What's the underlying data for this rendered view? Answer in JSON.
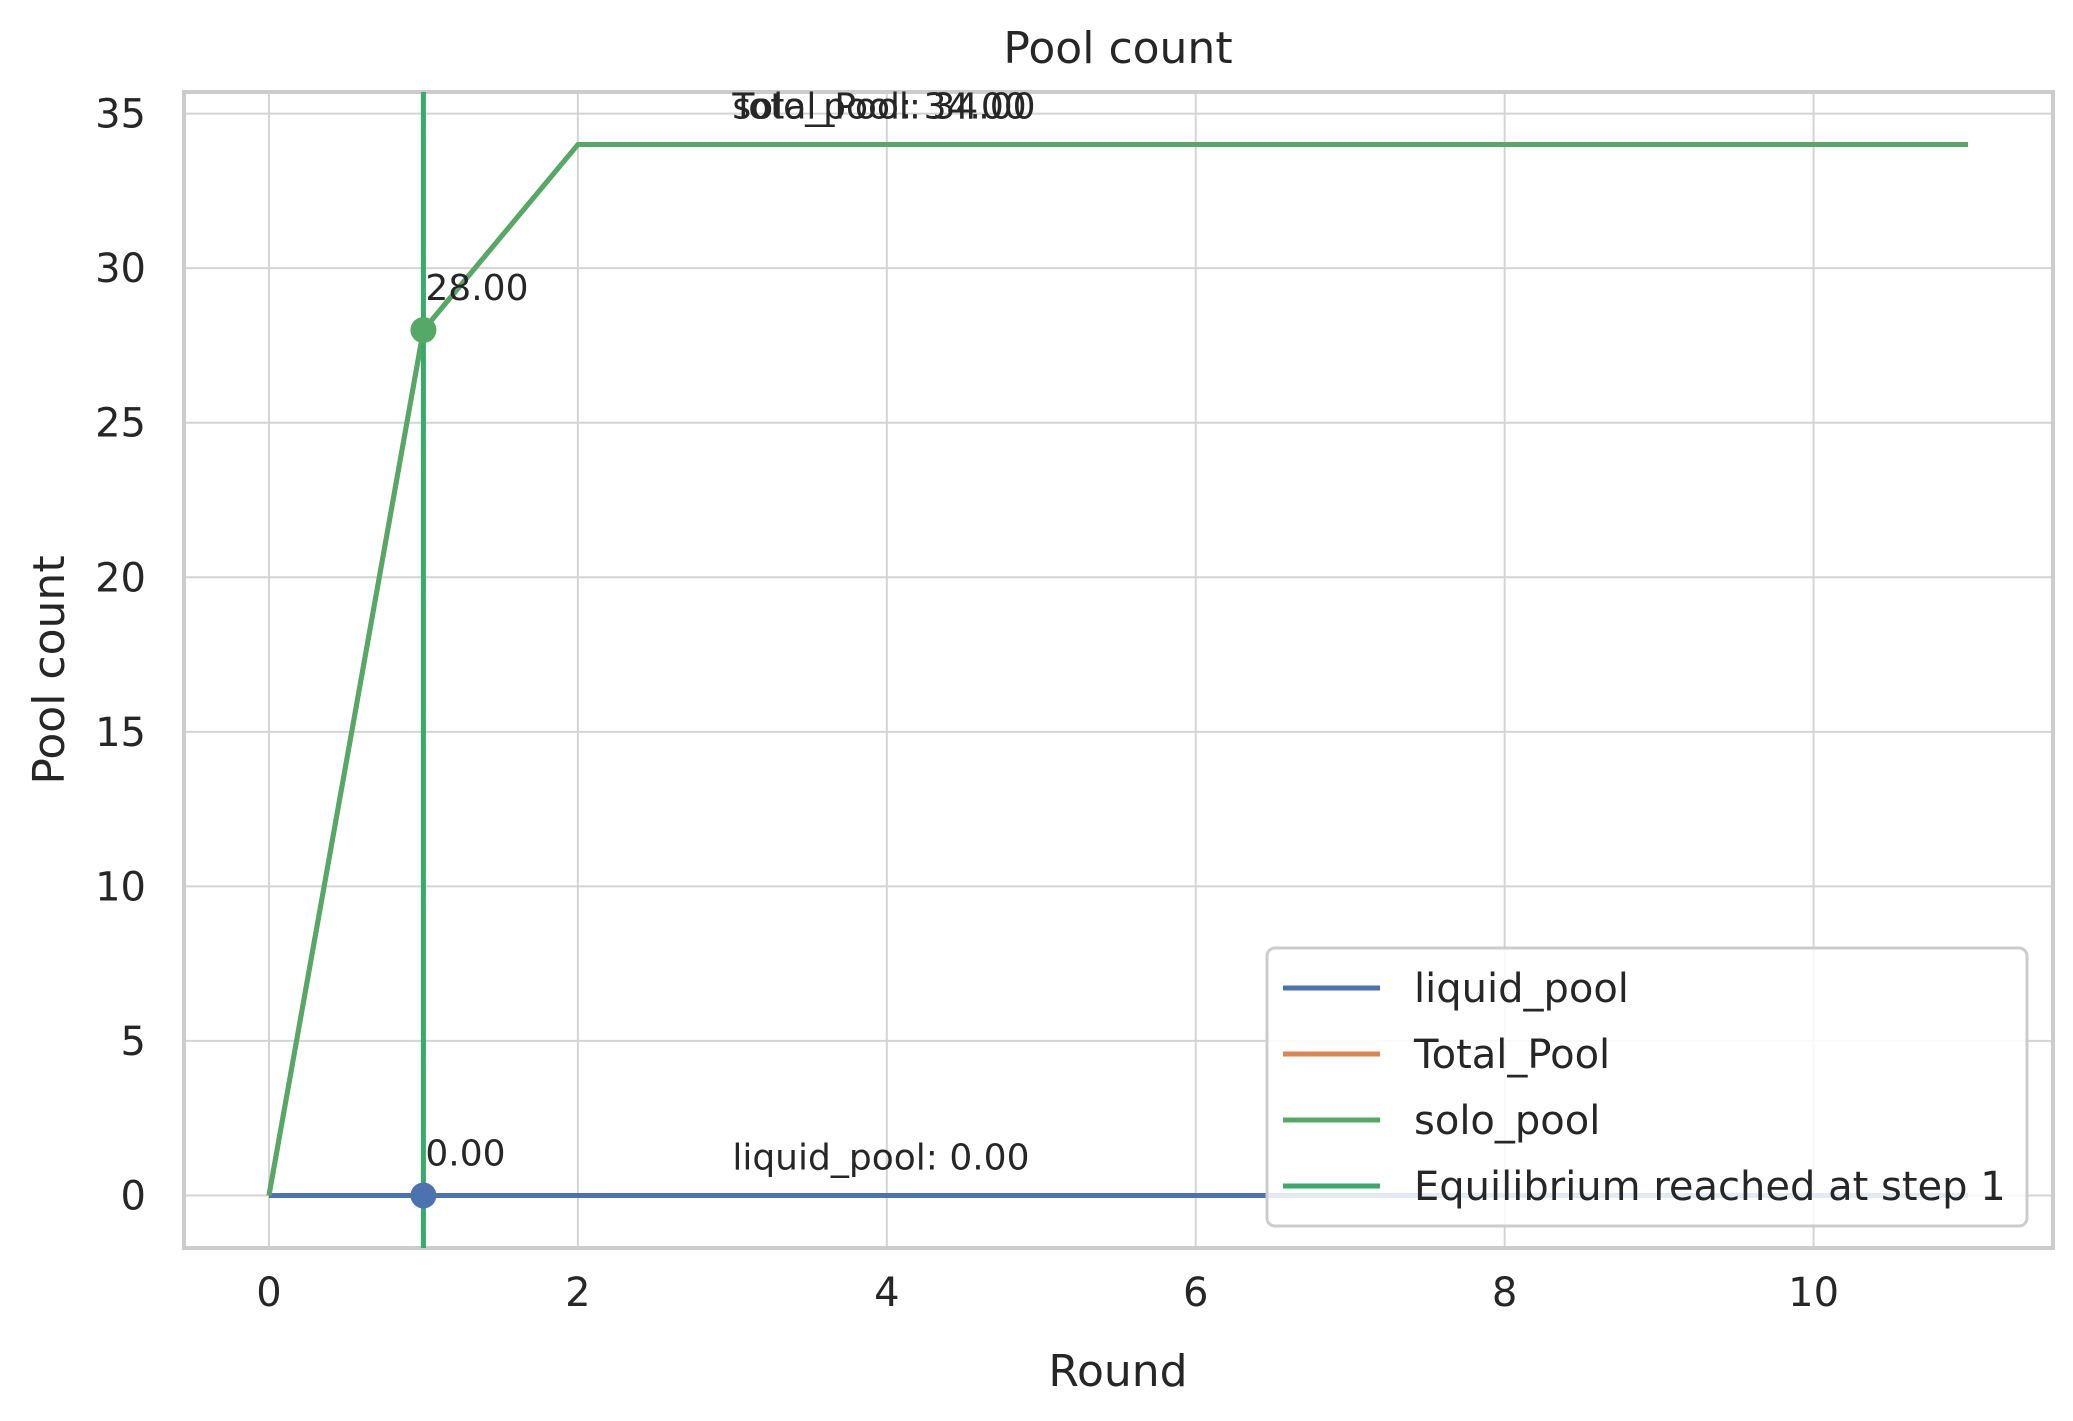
{
  "chart_data": {
    "type": "line",
    "title": "Pool count",
    "xlabel": "Round",
    "ylabel": "Pool count",
    "xlim": [
      -0.55,
      11.55
    ],
    "ylim": [
      -1.7,
      35.7
    ],
    "xticks": [
      0,
      2,
      4,
      6,
      8,
      10
    ],
    "yticks": [
      0,
      5,
      10,
      15,
      20,
      25,
      30,
      35
    ],
    "grid": true,
    "legend_position": "lower-right",
    "x": [
      0,
      1,
      2,
      3,
      4,
      5,
      6,
      7,
      8,
      9,
      10,
      11
    ],
    "series": [
      {
        "name": "liquid_pool",
        "color": "#4c72b0",
        "values": [
          0,
          0,
          0,
          0,
          0,
          0,
          0,
          0,
          0,
          0,
          0,
          0
        ]
      },
      {
        "name": "Total_Pool",
        "color": "#dd8452",
        "values": [
          0,
          28,
          34,
          34,
          34,
          34,
          34,
          34,
          34,
          34,
          34,
          34
        ]
      },
      {
        "name": "solo_pool",
        "color": "#55a868",
        "values": [
          0,
          28,
          34,
          34,
          34,
          34,
          34,
          34,
          34,
          34,
          34,
          34
        ]
      }
    ],
    "vline": {
      "name": "Equilibrium reached at step 1",
      "x": 1,
      "color": "#3aaa6a"
    },
    "markers": [
      {
        "x": 1,
        "y": 28,
        "color": "#55a868",
        "label": "28.00"
      },
      {
        "x": 1,
        "y": 0,
        "color": "#4c72b0",
        "label": "0.00"
      }
    ],
    "annotations": [
      {
        "text": "Total_Pool: 34.00",
        "x": 3,
        "y": 34
      },
      {
        "text": "solo_pool: 34.00",
        "x": 3,
        "y": 34
      },
      {
        "text": "liquid_pool: 0.00",
        "x": 3,
        "y": 0
      }
    ]
  }
}
